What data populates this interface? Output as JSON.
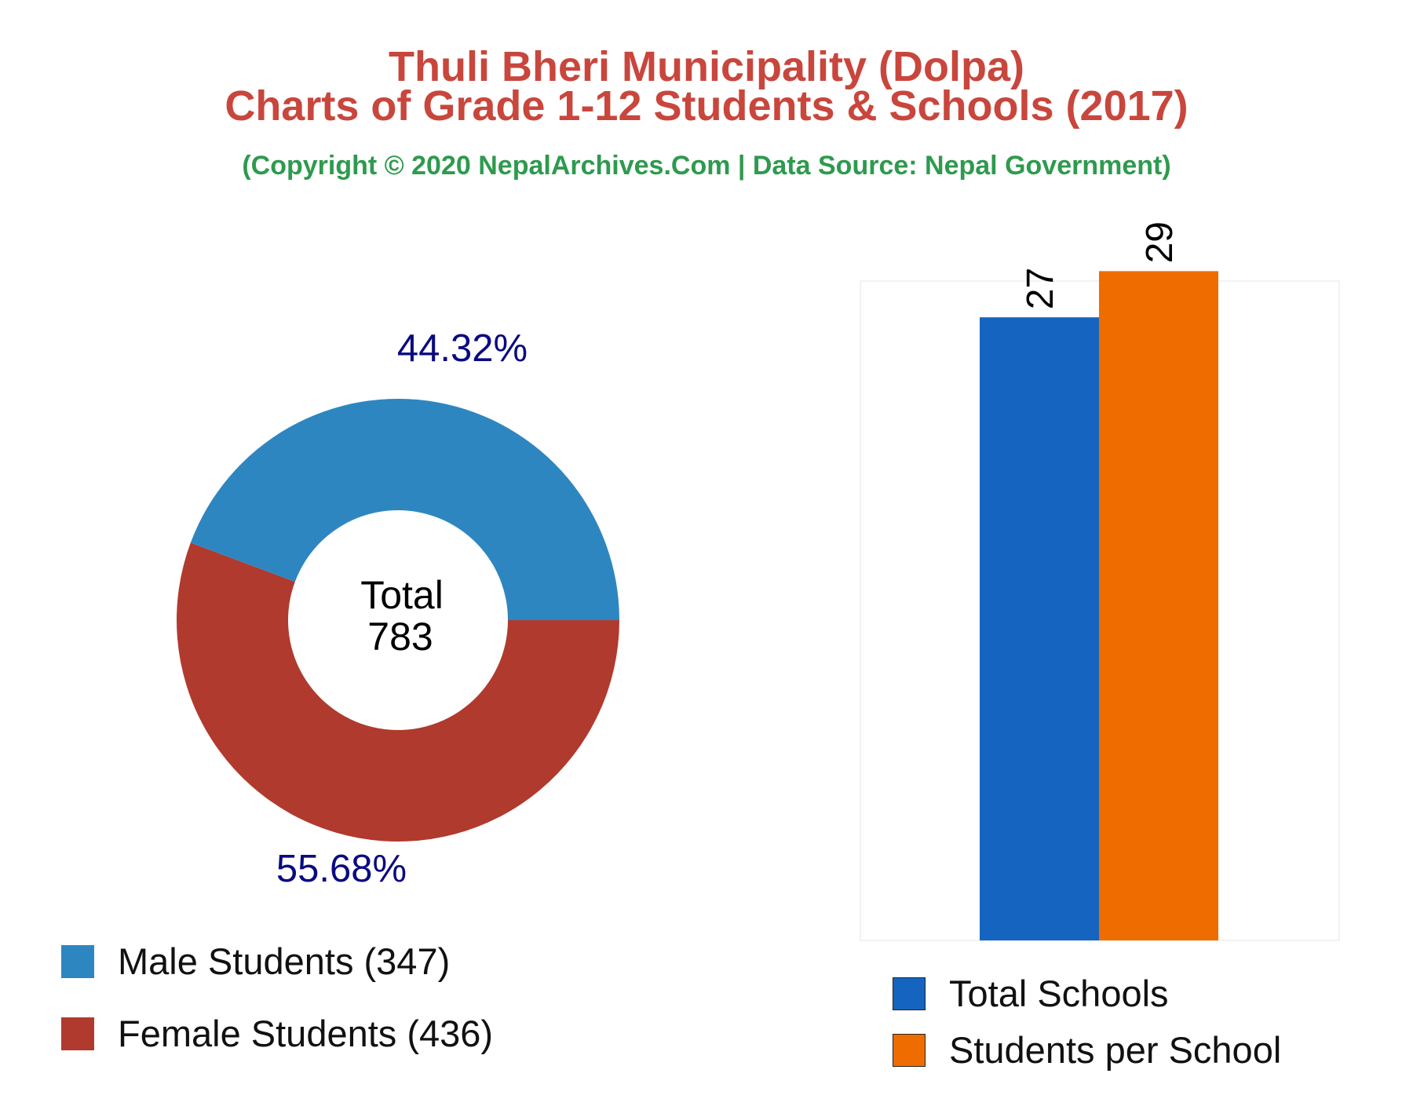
{
  "header": {
    "title_line1": "Thuli Bheri Municipality (Dolpa)",
    "title_line2": "Charts of Grade 1-12 Students & Schools (2017)",
    "subtitle": "(Copyright © 2020 NepalArchives.Com | Data Source: Nepal Government)"
  },
  "colors": {
    "title": "#c9463d",
    "subtitle": "#2e9a4e",
    "male": "#2e86c1",
    "female": "#b03a2e",
    "schools": "#1565c0",
    "students_per_school": "#ef6c00",
    "pct_label": "#0a0a80"
  },
  "chart_data": [
    {
      "type": "pie",
      "style": "donut",
      "center_label": "Total",
      "center_value": "783",
      "slices": [
        {
          "label": "Male Students",
          "value": 347,
          "percent_label": "44.32%",
          "legend": "Male Students (347)"
        },
        {
          "label": "Female Students",
          "value": 436,
          "percent_label": "55.68%",
          "legend": "Female Students (436)"
        }
      ]
    },
    {
      "type": "bar",
      "series": [
        {
          "name": "Total Schools",
          "value": 27,
          "value_label": "27"
        },
        {
          "name": "Students per School",
          "value": 29,
          "value_label": "29"
        }
      ],
      "ylim": [
        0,
        30
      ],
      "grid": false
    }
  ]
}
